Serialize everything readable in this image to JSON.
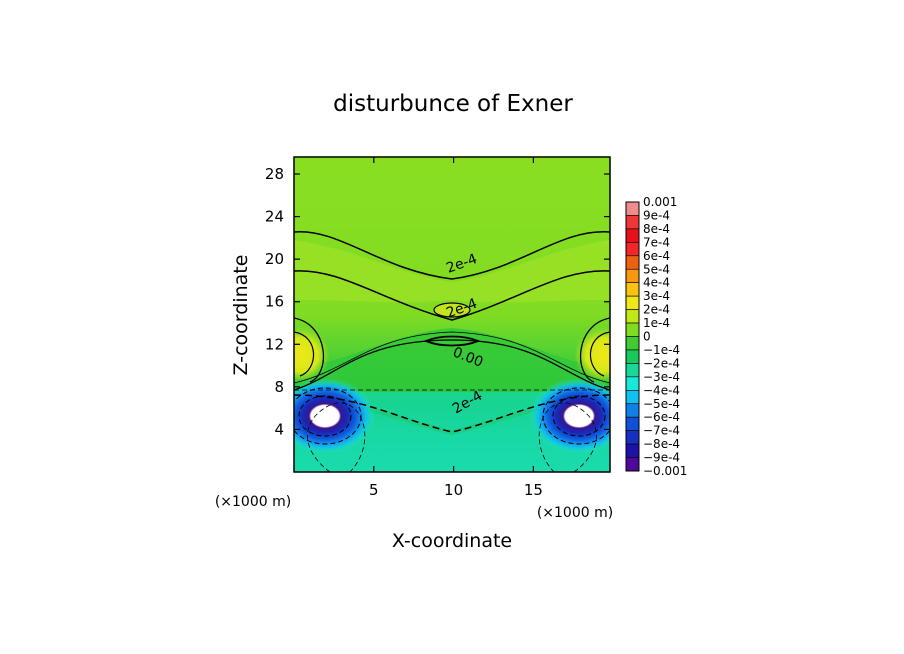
{
  "chart_data": {
    "type": "heatmap",
    "title": "disturbunce of Exner",
    "xlabel": "X-coordinate",
    "ylabel": "Z-coordinate",
    "x_unit_label": "(×1000 m)",
    "y_unit_label": "(×1000 m)",
    "xlim": [
      0,
      19.8
    ],
    "ylim": [
      0,
      29.6
    ],
    "x_ticks": [
      "5",
      "10",
      "15"
    ],
    "y_ticks": [
      "4",
      "8",
      "12",
      "16",
      "20",
      "24",
      "28"
    ],
    "x_tick_values": [
      5,
      10,
      15
    ],
    "y_tick_values": [
      4,
      8,
      12,
      16,
      20,
      24,
      28
    ],
    "colorbar": {
      "labels": [
        "0.001",
        "9e-4",
        "8e-4",
        "7e-4",
        "6e-4",
        "5e-4",
        "4e-4",
        "3e-4",
        "2e-4",
        "1e-4",
        "0",
        "−1e-4",
        "−2e-4",
        "−3e-4",
        "−4e-4",
        "−5e-4",
        "−6e-4",
        "−7e-4",
        "−8e-4",
        "−9e-4",
        "−0.001"
      ],
      "colors": [
        "#f08c8c",
        "#ee3838",
        "#e8101a",
        "#f02828",
        "#ee6010",
        "#f89810",
        "#f8c410",
        "#f0e818",
        "#c0e818",
        "#80dc20",
        "#40cc30",
        "#18c858",
        "#18d898",
        "#18e8d8",
        "#10c0f0",
        "#1080e8",
        "#1050d8",
        "#1830c0",
        "#2010a8",
        "#500898"
      ]
    },
    "contour_labels": [
      {
        "text": "2e-4",
        "x": 10.6,
        "y": 19.2,
        "angle": -20
      },
      {
        "text": "2e-4",
        "x": 10.6,
        "y": 15.0,
        "angle": -20
      },
      {
        "text": "0.00",
        "x": 10.8,
        "y": 10.4,
        "angle": 22
      },
      {
        "text": "2e-4",
        "x": 11.0,
        "y": 6.2,
        "angle": -30
      }
    ]
  }
}
